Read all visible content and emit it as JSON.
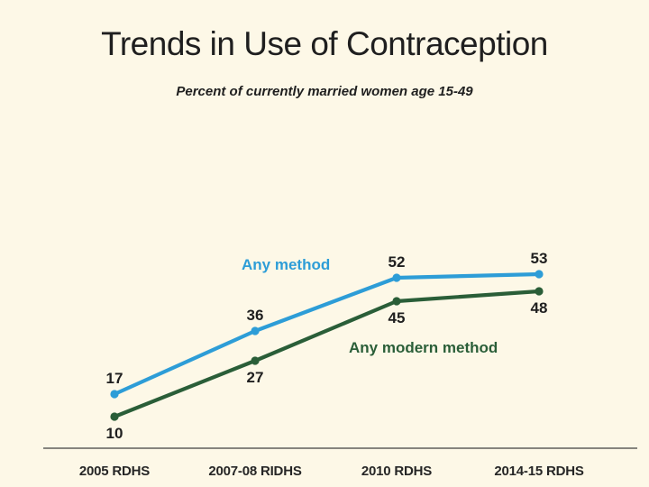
{
  "slide": {
    "title": "Trends in Use of Contraception",
    "subtitle": "Percent of currently married women age 15-49",
    "background_color": "#FDF8E7",
    "text_color": "#1F1F1F"
  },
  "chart_data": {
    "type": "line",
    "title": "Trends in Use of Contraception",
    "subtitle": "Percent of currently married women age 15-49",
    "categories": [
      "2005 RDHS",
      "2007-08 RIDHS",
      "2010 RDHS",
      "2014-15 RDHS"
    ],
    "series": [
      {
        "name": "Any method",
        "color": "#2D9DD7",
        "values": [
          17,
          36,
          52,
          53
        ],
        "value_label_position": "above"
      },
      {
        "name": "Any modern method",
        "color": "#2A5E38",
        "values": [
          10,
          27,
          45,
          48
        ],
        "value_label_position": "below"
      }
    ],
    "xlabel": "",
    "ylabel": "",
    "ylim": [
      0,
      60
    ],
    "grid": false,
    "legend_position": "inline-labels",
    "axis_color": "#404040",
    "markers": "circle",
    "data_labels_shown": true
  }
}
